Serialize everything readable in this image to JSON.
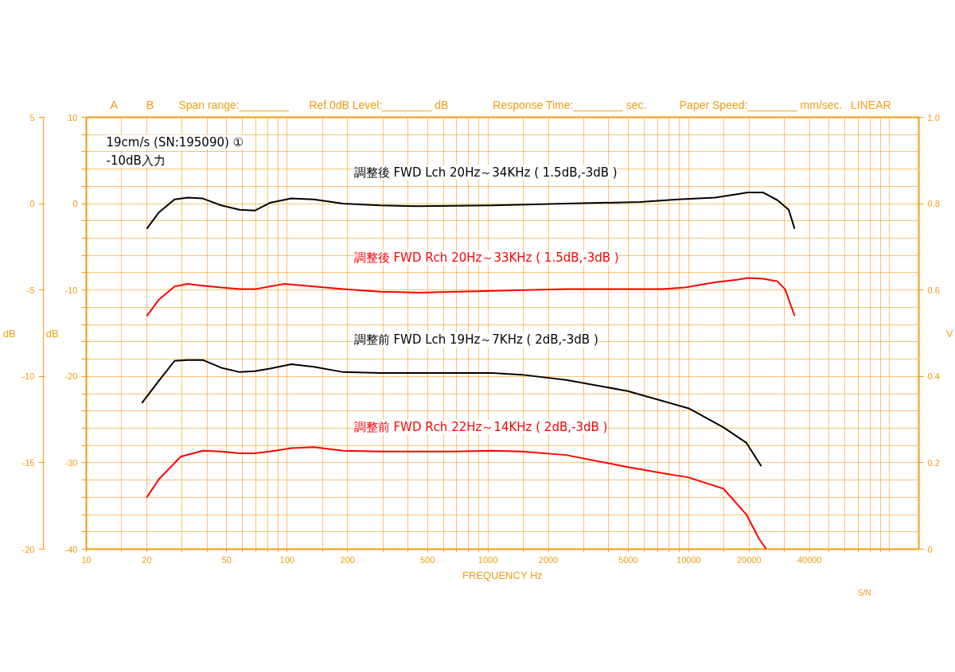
{
  "chart_data": {
    "type": "line",
    "xlabel": "FREQUENCY Hz",
    "ylabel": "dB",
    "y2label": "dB",
    "y3label": "V",
    "log": "x",
    "grid": true,
    "line_style": "solid",
    "marker": "none",
    "annotations": [
      "A",
      "B",
      "Span range:________",
      "Ref.0dB Level:________ dB",
      "Response Time:________ sec.",
      "Paper Speed:________ mm/sec.",
      "LINEAR",
      "19cm/s (SN:195090) ①",
      "-10dB入力",
      "S/N"
    ],
    "xlim": [
      10,
      140000
    ],
    "xticks": [
      10,
      {
        "value": 15,
        "label": null
      },
      20,
      {
        "value": 30,
        "label": null
      },
      {
        "value": 40,
        "label": null
      },
      50,
      {
        "value": 60,
        "label": null
      },
      {
        "value": 70,
        "label": null
      },
      {
        "value": 80,
        "label": null
      },
      {
        "value": 90,
        "label": null
      },
      100,
      {
        "value": 150,
        "label": null
      },
      200,
      {
        "value": 300,
        "label": null
      },
      {
        "value": 400,
        "label": null
      },
      500,
      {
        "value": 600,
        "label": null
      },
      {
        "value": 700,
        "label": null
      },
      {
        "value": 800,
        "label": null
      },
      {
        "value": 900,
        "label": null
      },
      1000,
      {
        "value": 1500,
        "label": null
      },
      2000,
      {
        "value": 3000,
        "label": null
      },
      {
        "value": 4000,
        "label": null
      },
      5000,
      {
        "value": 6000,
        "label": null
      },
      {
        "value": 7000,
        "label": null
      },
      {
        "value": 8000,
        "label": null
      },
      {
        "value": 9000,
        "label": null
      },
      10000,
      {
        "value": 15000,
        "label": null
      },
      20000,
      {
        "value": 30000,
        "label": null
      },
      40000,
      {
        "value": 50000,
        "label": null
      },
      {
        "value": 60000,
        "label": null
      },
      {
        "value": 70000,
        "label": null
      },
      {
        "value": 80000,
        "label": null
      },
      {
        "value": 90000,
        "label": null
      },
      {
        "value": 100000,
        "label": null
      }
    ],
    "ylim": [
      -40,
      10
    ],
    "yticks": [
      -40,
      {
        "value": -38,
        "label": null
      },
      {
        "value": -36,
        "label": null
      },
      {
        "value": -34,
        "label": null
      },
      {
        "value": -32,
        "label": null
      },
      -30,
      {
        "value": -28,
        "label": null
      },
      {
        "value": -26,
        "label": null
      },
      {
        "value": -24,
        "label": null
      },
      {
        "value": -22,
        "label": null
      },
      -20,
      {
        "value": -18,
        "label": null
      },
      {
        "value": -16,
        "label": null
      },
      {
        "value": -14,
        "label": null
      },
      {
        "value": -12,
        "label": null
      },
      -10,
      {
        "value": -8,
        "label": null
      },
      {
        "value": -6,
        "label": null
      },
      {
        "value": -4,
        "label": null
      },
      {
        "value": -2,
        "label": null
      },
      0,
      {
        "value": 2,
        "label": null
      },
      {
        "value": 4,
        "label": null
      },
      {
        "value": 6,
        "label": null
      },
      {
        "value": 8,
        "label": null
      },
      10
    ],
    "y2lim": [
      -20,
      5
    ],
    "y2ticks": [
      -20,
      -15,
      -10,
      -5,
      0,
      5
    ],
    "y3lim": [
      0,
      1
    ],
    "y3ticks": [
      0,
      0.2,
      0.4,
      0.6,
      0.8,
      {
        "value": 1,
        "label": "1.0"
      }
    ],
    "series": [
      {
        "name": "調整後 FWD Lch 20Hz～34KHz ( 1.5dB,-3dB )",
        "color": "#000000",
        "x": [
          20,
          23,
          27.5,
          32,
          38,
          47,
          58,
          69,
          82,
          105,
          136,
          190,
          290,
          450,
          1050,
          2450,
          5750,
          8800,
          13500,
          17400,
          19700,
          23400,
          27700,
          31500,
          33700
        ],
        "values": [
          -2.9,
          -1.0,
          0.5,
          0.7,
          0.6,
          -0.2,
          -0.7,
          -0.8,
          0.1,
          0.6,
          0.5,
          0,
          -0.2,
          -0.3,
          -0.2,
          0,
          0.2,
          0.5,
          0.7,
          1.1,
          1.3,
          1.3,
          0.4,
          -0.7,
          -2.9
        ]
      },
      {
        "name": "調整後 FWD Rch 20Hz～33KHz ( 1.5dB,-3dB )",
        "color": "#ff0000",
        "x": [
          20,
          23,
          27.5,
          32,
          38,
          47,
          58,
          69,
          82,
          97,
          136,
          190,
          290,
          450,
          1050,
          2450,
          5750,
          7420,
          9580,
          13500,
          17400,
          19700,
          23400,
          27700,
          30200,
          33700
        ],
        "values": [
          -13.0,
          -11.1,
          -9.6,
          -9.3,
          -9.5,
          -9.7,
          -9.9,
          -9.9,
          -9.6,
          -9.3,
          -9.6,
          -9.9,
          -10.2,
          -10.3,
          -10.1,
          -9.9,
          -9.9,
          -9.9,
          -9.7,
          -9.1,
          -8.8,
          -8.6,
          -8.7,
          -9.0,
          -9.9,
          -13.0
        ]
      },
      {
        "name": "調整前 FWD Lch 19Hz～7KHz ( 2dB,-3dB )",
        "color": "#000000",
        "x": [
          18.9,
          23,
          27.5,
          32,
          38,
          47,
          58,
          69,
          82,
          105,
          136,
          190,
          290,
          1050,
          1470,
          2450,
          4970,
          10000,
          14900,
          19400,
          23000
        ],
        "values": [
          -23.1,
          -20.5,
          -18.2,
          -18.1,
          -18.1,
          -19.0,
          -19.5,
          -19.4,
          -19.1,
          -18.6,
          -18.9,
          -19.5,
          -19.6,
          -19.6,
          -19.8,
          -20.4,
          -21.7,
          -23.7,
          -25.9,
          -27.7,
          -30.4
        ]
      },
      {
        "name": "調整前 FWD Rch 22Hz～14KHz ( 2dB,-3dB )",
        "color": "#ff0000",
        "x": [
          20,
          23,
          29.5,
          38,
          47,
          58,
          69,
          82,
          105,
          136,
          190,
          290,
          685,
          1050,
          1470,
          2450,
          4970,
          7420,
          10000,
          14900,
          19400,
          22400,
          24400
        ],
        "values": [
          -34.0,
          -31.9,
          -29.3,
          -28.6,
          -28.7,
          -28.9,
          -28.9,
          -28.7,
          -28.3,
          -28.2,
          -28.6,
          -28.7,
          -28.7,
          -28.6,
          -28.7,
          -29.1,
          -30.5,
          -31.2,
          -31.7,
          -33.0,
          -36.0,
          -38.8,
          -40
        ]
      }
    ]
  }
}
